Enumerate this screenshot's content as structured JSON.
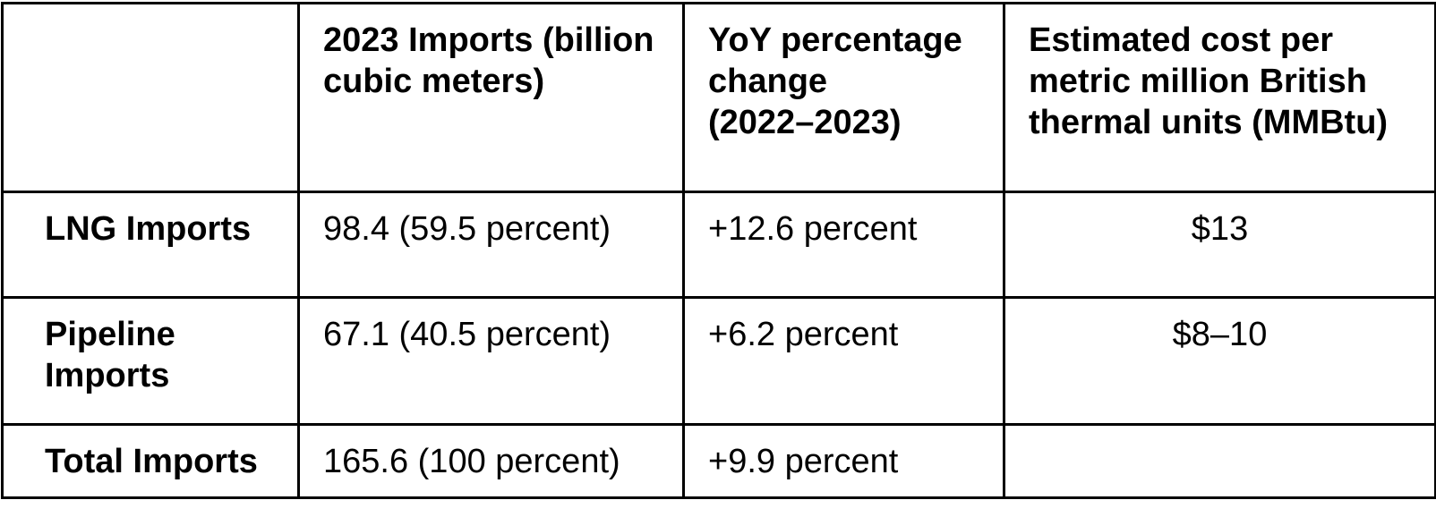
{
  "table": {
    "columns": [
      {
        "header": ""
      },
      {
        "header": "2023 Imports (billion\ncubic meters)"
      },
      {
        "header": "YoY percentage\nchange\n(2022–2023)"
      },
      {
        "header": "Estimated cost per\nmetric million British\nthermal units (MMBtu)"
      }
    ],
    "rows": [
      {
        "label": "LNG Imports",
        "imports_2023": "98.4 (59.5 percent)",
        "yoy_change": "+12.6 percent",
        "cost_per_mmbtu": "$13"
      },
      {
        "label": "Pipeline\nImports",
        "imports_2023": "67.1 (40.5 percent)",
        "yoy_change": "+6.2 percent",
        "cost_per_mmbtu": "$8–10"
      },
      {
        "label": "Total Imports",
        "imports_2023": "165.6 (100 percent)",
        "yoy_change": "+9.9 percent",
        "cost_per_mmbtu": ""
      }
    ]
  },
  "colors": {
    "border": "#000000",
    "background": "#ffffff",
    "text": "#000000"
  }
}
